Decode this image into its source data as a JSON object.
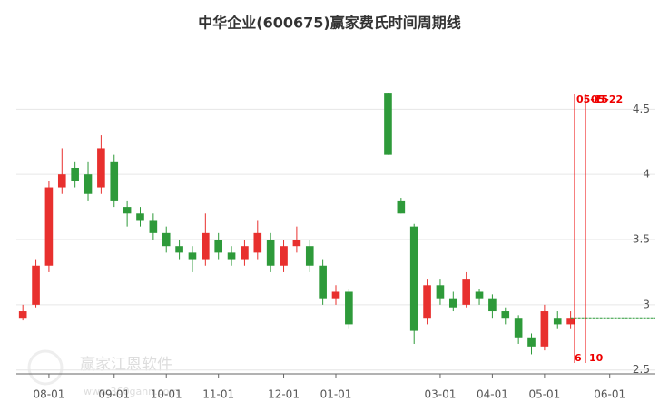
{
  "chart_data": {
    "type": "candlestick",
    "title": "中华企业(600675)赢家费氏时间周期线",
    "watermark": "赢家江恩软件",
    "watermark_url": "www.360gann.com",
    "categories": [
      null,
      null,
      "08-01",
      null,
      null,
      null,
      null,
      "09-01",
      null,
      null,
      null,
      "10-01",
      null,
      null,
      null,
      "11-01",
      null,
      null,
      null,
      null,
      "12-01",
      null,
      null,
      null,
      "01-01",
      null,
      null,
      null,
      null,
      null,
      null,
      null,
      "03-01",
      null,
      null,
      null,
      "04-01",
      null,
      null,
      null,
      "05-01",
      null,
      null,
      null,
      null,
      "06-01",
      null,
      null,
      null
    ],
    "open": [
      2.9,
      3.0,
      3.3,
      3.9,
      4.05,
      4.0,
      3.9,
      4.1,
      3.75,
      3.7,
      3.65,
      3.55,
      3.45,
      3.4,
      3.35,
      3.5,
      3.4,
      3.35,
      3.4,
      3.5,
      3.3,
      3.45,
      3.45,
      3.3,
      3.05,
      3.1,
      null,
      null,
      4.62,
      3.8,
      3.6,
      2.9,
      3.15,
      3.05,
      3.0,
      3.1,
      3.05,
      2.95,
      2.9,
      2.75,
      2.68,
      2.9,
      2.85,
      null,
      null,
      null,
      null,
      null,
      null
    ],
    "high": [
      3.0,
      3.35,
      3.95,
      4.2,
      4.1,
      4.1,
      4.3,
      4.15,
      3.8,
      3.75,
      3.7,
      3.6,
      3.5,
      3.45,
      3.7,
      3.55,
      3.45,
      3.5,
      3.65,
      3.55,
      3.5,
      3.6,
      3.5,
      3.35,
      3.15,
      3.12,
      null,
      null,
      4.62,
      3.82,
      3.62,
      3.2,
      3.2,
      3.1,
      3.25,
      3.12,
      3.08,
      2.98,
      2.92,
      2.78,
      3.0,
      2.95,
      2.95,
      null,
      null,
      null,
      null,
      null,
      null
    ],
    "low": [
      2.88,
      2.98,
      3.25,
      3.85,
      3.9,
      3.8,
      3.85,
      3.75,
      3.6,
      3.6,
      3.5,
      3.4,
      3.35,
      3.25,
      3.3,
      3.35,
      3.3,
      3.3,
      3.35,
      3.25,
      3.25,
      3.4,
      3.25,
      3.0,
      3.0,
      2.82,
      null,
      null,
      4.15,
      3.7,
      2.7,
      2.85,
      3.0,
      2.95,
      2.98,
      3.0,
      2.9,
      2.85,
      2.7,
      2.62,
      2.65,
      2.82,
      2.82,
      null,
      null,
      null,
      null,
      null,
      null
    ],
    "close": [
      2.95,
      3.3,
      3.9,
      4.0,
      3.95,
      3.85,
      4.2,
      3.8,
      3.7,
      3.65,
      3.55,
      3.45,
      3.4,
      3.35,
      3.55,
      3.4,
      3.35,
      3.45,
      3.55,
      3.3,
      3.45,
      3.5,
      3.3,
      3.05,
      3.1,
      2.85,
      null,
      null,
      4.15,
      3.7,
      2.8,
      3.15,
      3.05,
      2.98,
      3.2,
      3.05,
      2.95,
      2.9,
      2.75,
      2.68,
      2.95,
      2.85,
      2.9,
      null,
      null,
      null,
      null,
      null,
      null
    ],
    "up_color": "#e8302e",
    "down_color": "#2e9a3a",
    "level": 2.9,
    "level_color": "#2e9a3a",
    "cycle_lines": [
      {
        "label": "05-15",
        "count": 6
      },
      {
        "label": "05-22",
        "count": 10
      }
    ],
    "ylim": [
      2.47,
      4.92
    ],
    "yticks": [
      2.5,
      3,
      3.5,
      4,
      4.5
    ],
    "grid": true
  }
}
